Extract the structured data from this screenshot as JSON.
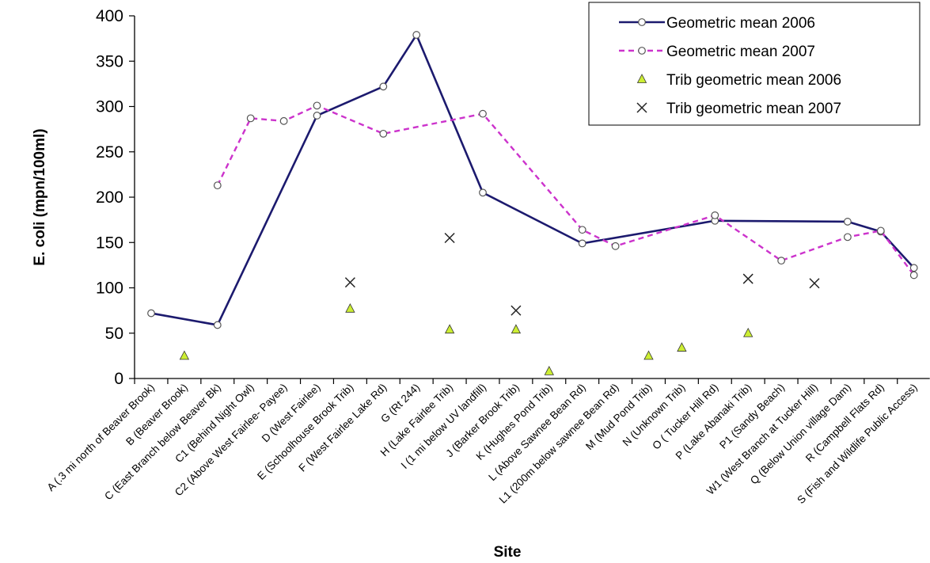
{
  "chart_data": {
    "type": "line",
    "xlabel": "Site",
    "ylabel": "E. coli (mpn/100ml)",
    "ylim": [
      0,
      400
    ],
    "yticks": [
      0,
      50,
      100,
      150,
      200,
      250,
      300,
      350,
      400
    ],
    "grid": false,
    "legend_position": "top-right",
    "categories": [
      "A (.3 mi north of Beaver Brook)",
      "B (Beaver Brook)",
      "C (East Branch below Beaver Bk)",
      "C1 (Behind Night Owl)",
      "C2 (Above West Fairlee- Payee)",
      "D (West Fairlee)",
      "E (Schoolhouse Brook Trib)",
      "F (West Fairlee Lake Rd)",
      "G (Rt 244)",
      "H (Lake Fairlee Trib)",
      "I (1 mi below UV landfill)",
      "J (Barker Brook Trib)",
      "K (Hughes Pond Trib)",
      "L (Above Sawnee Bean Rd)",
      "L1 (200m below sawnee Bean Rd)",
      "M (Mud Pond Trib)",
      "N (Unknown Trib)",
      "O ( Tucker Hill Rd)",
      "P (Lake Abanaki Trib)",
      "P1 (Sandy Beach)",
      "W1 (West Branch at Tucker Hill)",
      "Q (Below Union village Dam)",
      "R (Campbell Flats Rd)",
      "S (Fish and Wildlife Public Access)"
    ],
    "series": [
      {
        "name": "Geometric mean 2006",
        "style": "solid-line-circle",
        "color": "#1c1a6e",
        "values": [
          72,
          null,
          59,
          null,
          null,
          290,
          null,
          322,
          379,
          null,
          205,
          null,
          null,
          149,
          null,
          null,
          null,
          174,
          null,
          null,
          null,
          173,
          162,
          122
        ]
      },
      {
        "name": "Geometric mean 2007",
        "style": "dashed-line-circle",
        "color": "#cc33cc",
        "values": [
          null,
          null,
          213,
          287,
          284,
          301,
          null,
          270,
          null,
          null,
          292,
          null,
          null,
          164,
          146,
          null,
          null,
          180,
          null,
          130,
          null,
          156,
          163,
          114
        ]
      },
      {
        "name": "Trib geometric mean 2006",
        "style": "triangle-marker",
        "color": "#ccee33",
        "values": [
          null,
          25,
          null,
          null,
          null,
          null,
          77,
          null,
          null,
          54,
          null,
          54,
          8,
          null,
          null,
          25,
          34,
          null,
          50,
          null,
          null,
          null,
          null,
          null
        ]
      },
      {
        "name": "Trib geometric mean 2007",
        "style": "x-marker",
        "color": "#222222",
        "values": [
          null,
          null,
          null,
          null,
          null,
          null,
          106,
          null,
          null,
          155,
          null,
          75,
          null,
          null,
          null,
          null,
          null,
          null,
          110,
          null,
          105,
          null,
          null,
          null
        ]
      }
    ]
  }
}
